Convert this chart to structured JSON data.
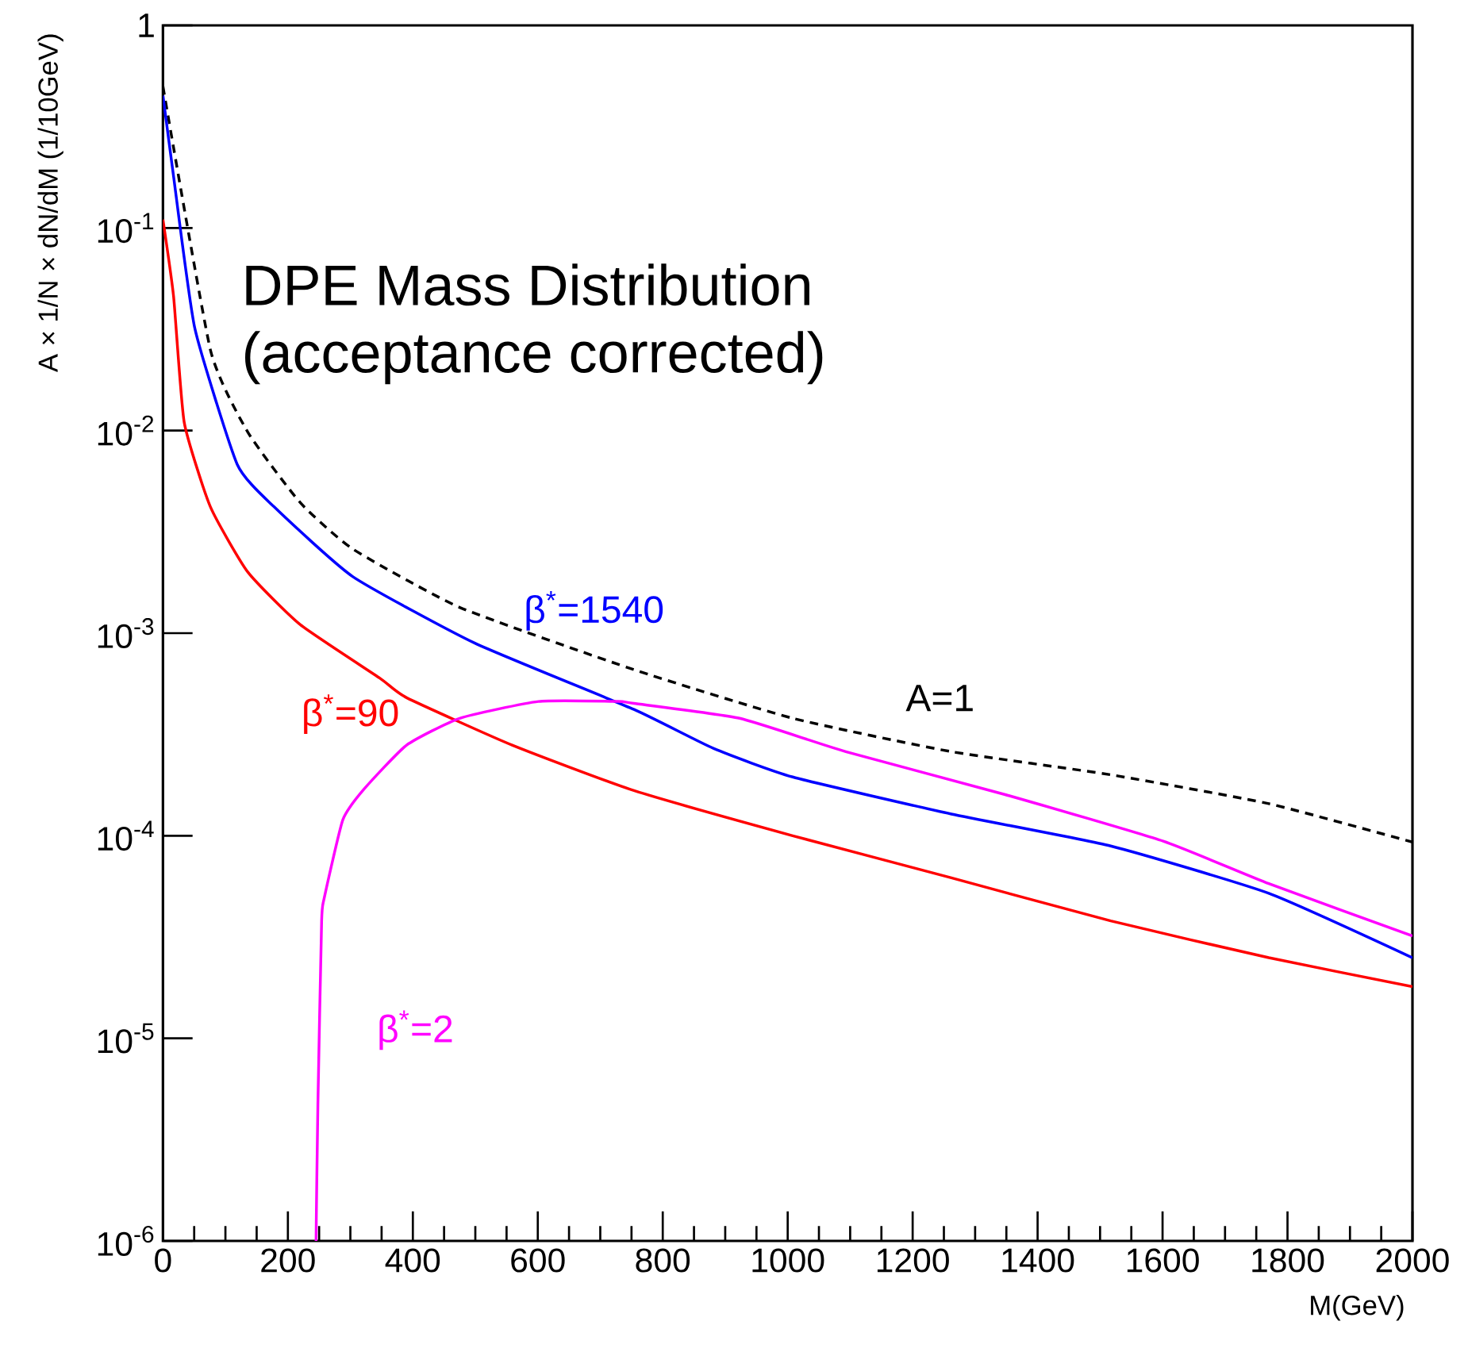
{
  "chart_data": {
    "type": "line",
    "log": true,
    "grid": false,
    "xlabel": "M(GeV)",
    "ylabel": "A × 1/N × dN/dM (1/10GeV)",
    "annotations": [
      "DPE Mass Distribution",
      "(acceptance corrected)"
    ],
    "xlim": [
      0,
      2000
    ],
    "ylim": [
      1e-06,
      1
    ],
    "xticks": [
      0,
      200,
      400,
      600,
      800,
      1000,
      1200,
      1400,
      1600,
      1800,
      2000
    ],
    "yticks": [
      1,
      {
        "value": 0.1,
        "label": "10$^{-1}$"
      },
      {
        "value": 0.01,
        "label": "10$^{-2}$"
      },
      {
        "value": 0.001,
        "label": "10$^{-3}$"
      },
      {
        "value": 0.0001,
        "label": "10$^{-4}$"
      },
      {
        "value": 1e-05,
        "label": "10$^{-5}$"
      },
      {
        "value": 1e-06,
        "label": "10$^{-6}$"
      }
    ],
    "series": [
      {
        "name": "A=1",
        "color": "#000000",
        "line_style": "dashed",
        "x": [
          0,
          76,
          136,
          220,
          304,
          475,
          754,
          1008,
          1262,
          1517,
          1770,
          2000
        ],
        "values": [
          0.5,
          0.025,
          0.0098,
          0.0044,
          0.0026,
          0.00134,
          0.00066,
          0.00038,
          0.00026,
          0.0002,
          0.000144,
          9.3e-05
        ]
      },
      {
        "name": "β$^{*}$=1540",
        "color": "#0000ff",
        "x": [
          0,
          17,
          51,
          119,
          178,
          304,
          500,
          754,
          881,
          1008,
          1262,
          1517,
          1770,
          2000
        ],
        "values": [
          0.45,
          0.18,
          0.032,
          0.0068,
          0.0042,
          0.0019,
          0.00089,
          0.00042,
          0.00027,
          0.000195,
          0.000128,
          8.9e-05,
          5.2e-05,
          2.5e-05
        ]
      },
      {
        "name": "β$^{*}$=90",
        "color": "#ff0000",
        "x": [
          0,
          17,
          34,
          76,
          136,
          220,
          347,
          390,
          559,
          754,
          1008,
          1262,
          1517,
          1770,
          2000
        ],
        "values": [
          0.11,
          0.046,
          0.011,
          0.0042,
          0.002,
          0.0011,
          0.0006,
          0.00048,
          0.00028,
          0.000167,
          0.0001,
          6.2e-05,
          3.8e-05,
          2.5e-05,
          1.8e-05
        ]
      },
      {
        "name": "β$^{*}$=2",
        "color": "#ff00ff",
        "x": [
          245,
          248,
          254,
          258,
          288,
          322,
          390,
          475,
          601,
          728,
          754,
          923,
          1093,
          1347,
          1601,
          1770,
          2000
        ],
        "values": [
          1e-06,
          4.7e-06,
          3.8e-05,
          4.9e-05,
          0.00012,
          0.00017,
          0.00028,
          0.00038,
          0.00046,
          0.00046,
          0.00045,
          0.00038,
          0.00026,
          0.00016,
          9.4e-05,
          5.8e-05,
          3.2e-05
        ]
      }
    ]
  }
}
